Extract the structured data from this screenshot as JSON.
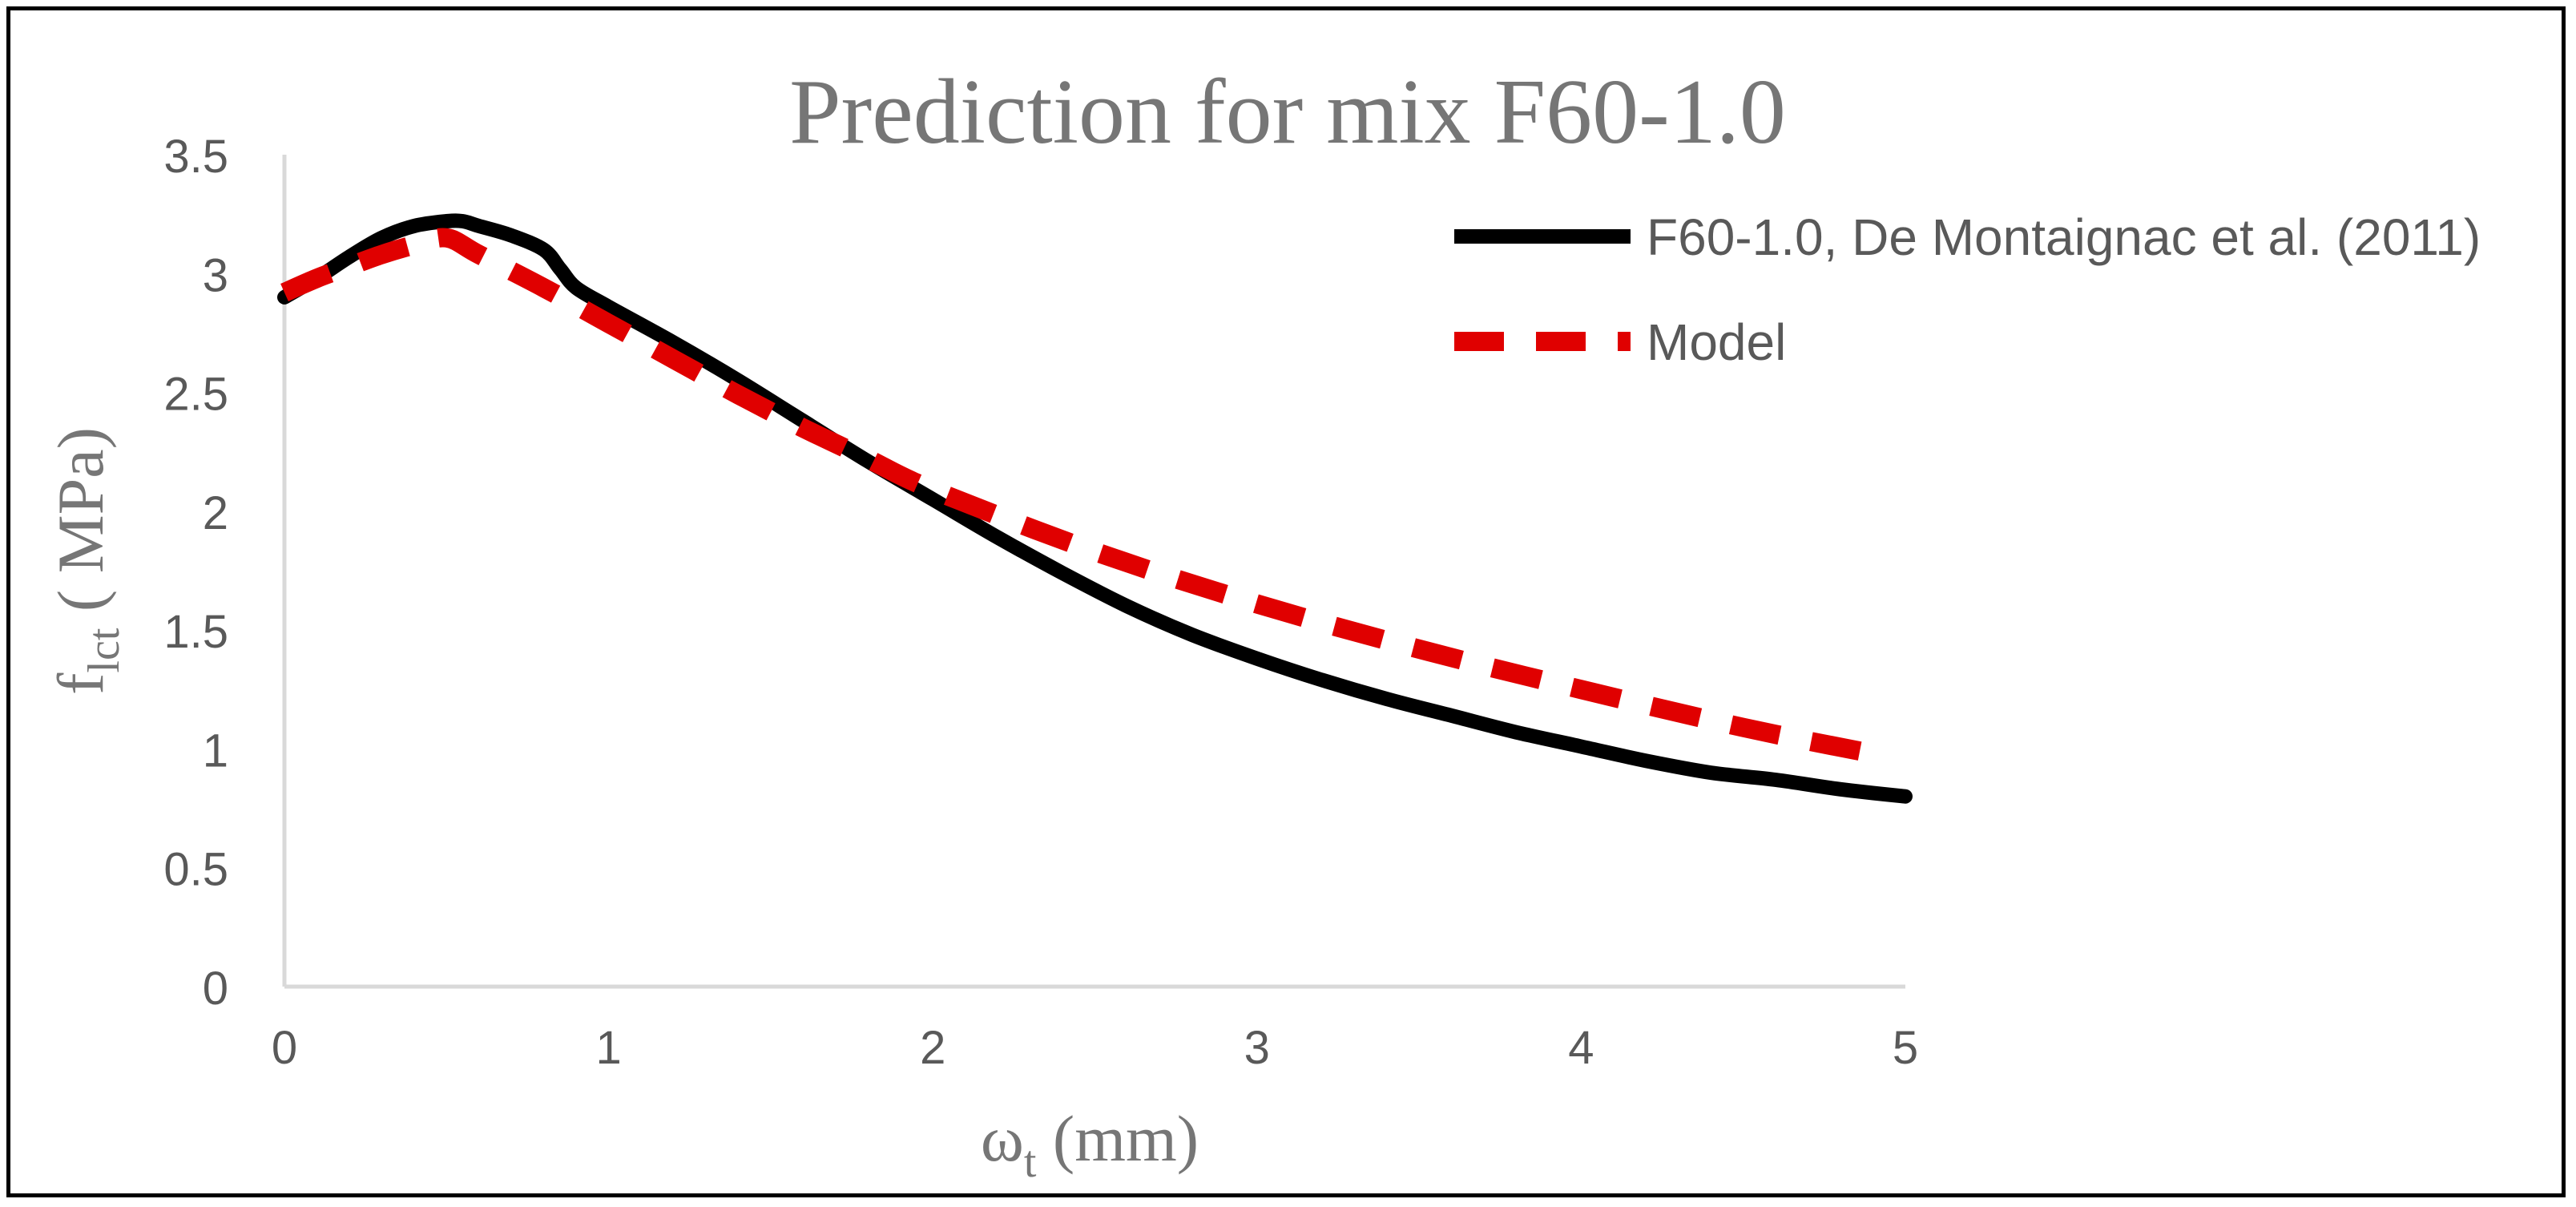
{
  "chart_data": {
    "type": "line",
    "title": "Prediction for mix F60-1.0",
    "xlabel": {
      "main": "ω",
      "sub": "t",
      "rest": " (mm)"
    },
    "ylabel": {
      "main": "f",
      "sub": "lct",
      "rest": " ( MPa)"
    },
    "xlim": [
      0,
      5
    ],
    "ylim": [
      0,
      3.5
    ],
    "x_ticks": [
      0,
      1,
      2,
      3,
      4,
      5
    ],
    "x_tick_labels": [
      "0",
      "1",
      "2",
      "3",
      "4",
      "5"
    ],
    "y_ticks": [
      0,
      0.5,
      1,
      1.5,
      2,
      2.5,
      3,
      3.5
    ],
    "y_tick_labels": [
      "0",
      "0.5",
      "1",
      "1.5",
      "2",
      "2.5",
      "3",
      "3.5"
    ],
    "grid": false,
    "legend_position": "top-right",
    "series": [
      {
        "name": "F60-1.0, De Montaignac et al. (2011)",
        "style": "solid",
        "color": "#000000",
        "x": [
          0,
          0.1,
          0.2,
          0.3,
          0.4,
          0.5,
          0.55,
          0.6,
          0.7,
          0.8,
          0.85,
          0.9,
          1.0,
          1.2,
          1.4,
          1.6,
          1.8,
          2.0,
          2.2,
          2.4,
          2.6,
          2.8,
          3.0,
          3.2,
          3.4,
          3.6,
          3.8,
          4.0,
          4.2,
          4.4,
          4.6,
          4.8,
          5.0
        ],
        "y": [
          2.9,
          2.98,
          3.07,
          3.15,
          3.2,
          3.22,
          3.22,
          3.2,
          3.16,
          3.1,
          3.02,
          2.94,
          2.86,
          2.71,
          2.55,
          2.38,
          2.21,
          2.05,
          1.89,
          1.74,
          1.6,
          1.48,
          1.38,
          1.29,
          1.21,
          1.14,
          1.07,
          1.01,
          0.95,
          0.9,
          0.87,
          0.83,
          0.8
        ]
      },
      {
        "name": "Model",
        "style": "dashed",
        "color": "#e00000",
        "x": [
          0,
          0.1,
          0.2,
          0.3,
          0.4,
          0.5,
          0.6,
          0.8,
          1.0,
          1.2,
          1.4,
          1.6,
          1.8,
          2.0,
          2.5,
          3.0,
          3.5,
          4.0,
          4.5,
          4.9
        ],
        "y": [
          2.92,
          2.98,
          3.03,
          3.08,
          3.12,
          3.15,
          3.08,
          2.94,
          2.79,
          2.64,
          2.49,
          2.35,
          2.22,
          2.09,
          1.83,
          1.61,
          1.42,
          1.25,
          1.09,
          0.98
        ]
      }
    ]
  }
}
